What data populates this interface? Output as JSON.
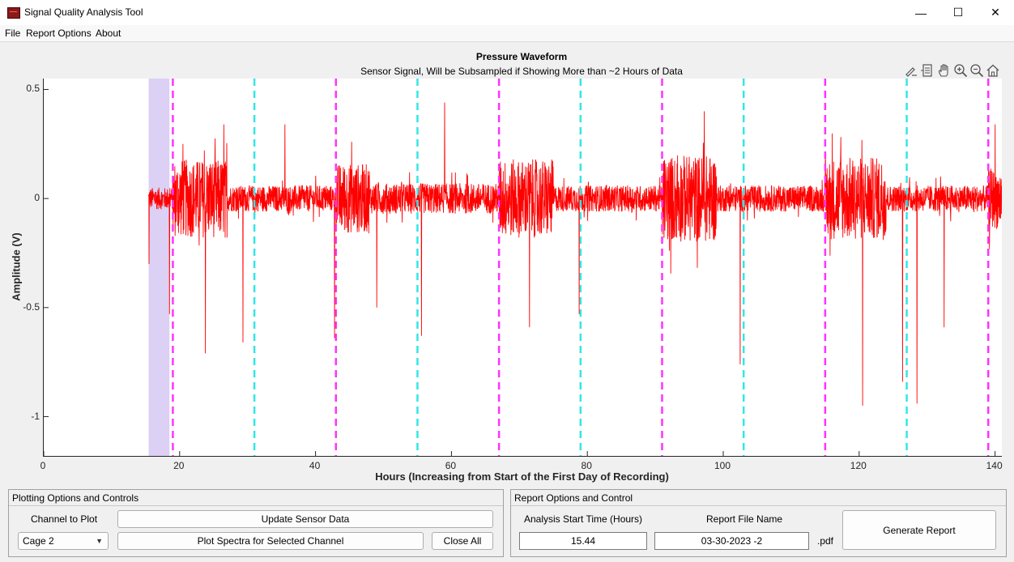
{
  "window": {
    "title": "Signal Quality Analysis Tool",
    "minimize": "—",
    "maximize": "☐",
    "close": "✕"
  },
  "menu": [
    "File",
    "Report Options",
    "About"
  ],
  "plot": {
    "title": "Pressure Waveform",
    "subtitle": "Sensor Signal, Will be Subsampled if Showing More than ~2 Hours of Data",
    "toolbar_icons": [
      "annotate-icon",
      "data-tips-icon",
      "pan-hand-icon",
      "zoom-in-icon",
      "zoom-out-icon",
      "home-icon"
    ]
  },
  "chart_data": {
    "type": "line",
    "xlabel": "Hours (Increasing from Start of the First Day of Recording)",
    "ylabel": "Amplitude (V)",
    "xlim": [
      0,
      141
    ],
    "ylim": [
      -1.18,
      0.55
    ],
    "xticks": [
      0,
      20,
      40,
      60,
      80,
      100,
      120,
      140
    ],
    "xtick_labels": [
      "0",
      "20",
      "40",
      "60",
      "80",
      "100",
      "120",
      "140"
    ],
    "yticks": [
      0.5,
      0,
      -0.5,
      -1
    ],
    "ytick_labels": [
      "0.5",
      "0",
      "-0.5",
      "-1"
    ],
    "grid": false,
    "series": [
      {
        "color": "#ff0000",
        "x_range": [
          15.4,
          141
        ],
        "noise_envelope": [
          {
            "x": [
              15.4,
              19
            ],
            "amp": 0.05
          },
          {
            "x": [
              19,
              27
            ],
            "amp": 0.18
          },
          {
            "x": [
              27,
              43
            ],
            "amp": 0.06
          },
          {
            "x": [
              43,
              48
            ],
            "amp": 0.16
          },
          {
            "x": [
              48,
              67
            ],
            "amp": 0.07
          },
          {
            "x": [
              67,
              75
            ],
            "amp": 0.18
          },
          {
            "x": [
              75,
              91
            ],
            "amp": 0.06
          },
          {
            "x": [
              91,
              99
            ],
            "amp": 0.2
          },
          {
            "x": [
              99,
              115
            ],
            "amp": 0.06
          },
          {
            "x": [
              115,
              124
            ],
            "amp": 0.19
          },
          {
            "x": [
              124,
              139
            ],
            "amp": 0.06
          },
          {
            "x": [
              139,
              141
            ],
            "amp": 0.14
          }
        ],
        "spikes": [
          {
            "x": 15.5,
            "y": -0.3
          },
          {
            "x": 18.5,
            "y": -0.53
          },
          {
            "x": 20.5,
            "y": 0.25
          },
          {
            "x": 23.8,
            "y": -0.71
          },
          {
            "x": 26.5,
            "y": 0.34
          },
          {
            "x": 29.3,
            "y": -0.66
          },
          {
            "x": 35.5,
            "y": 0.34
          },
          {
            "x": 42.8,
            "y": -0.64
          },
          {
            "x": 45.3,
            "y": 0.26
          },
          {
            "x": 49,
            "y": -0.5
          },
          {
            "x": 55.6,
            "y": -0.63
          },
          {
            "x": 59,
            "y": 0.44
          },
          {
            "x": 71.5,
            "y": -0.59
          },
          {
            "x": 78.8,
            "y": -0.53
          },
          {
            "x": 97.2,
            "y": 0.4
          },
          {
            "x": 102.5,
            "y": -0.76
          },
          {
            "x": 120.5,
            "y": -0.95
          },
          {
            "x": 126.4,
            "y": -0.84
          },
          {
            "x": 128.5,
            "y": -0.94
          },
          {
            "x": 132.5,
            "y": -0.59
          },
          {
            "x": 140,
            "y": 0.34
          }
        ]
      }
    ],
    "vlines": {
      "magenta": {
        "color": "#ff33ff",
        "x": [
          19,
          43,
          67,
          91,
          115,
          139
        ]
      },
      "cyan": {
        "color": "#33e6e6",
        "x": [
          31,
          55,
          79,
          103,
          127
        ]
      }
    },
    "shaded_region": {
      "color": "#dcd0f4",
      "x": [
        15.44,
        18.5
      ]
    }
  },
  "plotting_panel": {
    "title": "Plotting Options and Controls",
    "channel_label": "Channel to Plot",
    "update_button": "Update Sensor Data",
    "channel_value": "Cage 2",
    "spectra_button": "Plot Spectra for Selected Channel",
    "close_all_button": "Close All"
  },
  "report_panel": {
    "title": "Report Options and Control",
    "start_label": "Analysis Start Time (Hours)",
    "file_label": "Report File Name",
    "start_value": "15.44",
    "file_value": "03-30-2023 -2",
    "ext_label": ".pdf",
    "generate_button": "Generate Report"
  }
}
